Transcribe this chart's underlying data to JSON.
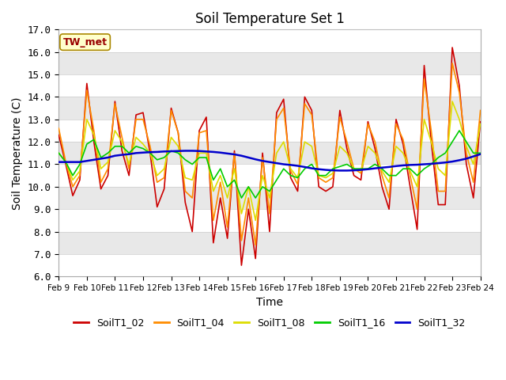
{
  "title": "Soil Temperature Set 1",
  "xlabel": "Time",
  "ylabel": "Soil Temperature (C)",
  "ylim": [
    6.0,
    17.0
  ],
  "yticks": [
    6.0,
    7.0,
    8.0,
    9.0,
    10.0,
    11.0,
    12.0,
    13.0,
    14.0,
    15.0,
    16.0,
    17.0
  ],
  "xtick_labels": [
    "Feb 9",
    "Feb 10",
    "Feb 11",
    "Feb 12",
    "Feb 13",
    "Feb 14",
    "Feb 15",
    "Feb 16",
    "Feb 17",
    "Feb 18",
    "Feb 19",
    "Feb 20",
    "Feb 21",
    "Feb 22",
    "Feb 23",
    "Feb 24"
  ],
  "annotation": "TW_met",
  "series": {
    "SoilT1_02": {
      "color": "#cc0000",
      "linewidth": 1.2,
      "values": [
        12.3,
        11.0,
        9.6,
        10.3,
        14.6,
        12.0,
        9.9,
        10.5,
        13.8,
        11.6,
        10.5,
        13.2,
        13.3,
        11.5,
        9.1,
        9.9,
        13.5,
        12.4,
        9.3,
        8.0,
        12.5,
        13.1,
        7.5,
        9.5,
        7.7,
        11.6,
        6.5,
        9.0,
        6.8,
        11.5,
        8.0,
        13.3,
        13.9,
        10.4,
        9.8,
        14.0,
        13.4,
        10.0,
        9.8,
        10.0,
        13.4,
        11.7,
        10.5,
        10.3,
        12.9,
        11.7,
        10.0,
        9.0,
        13.0,
        11.9,
        10.0,
        8.1,
        15.4,
        12.0,
        9.2,
        9.2,
        16.2,
        14.5,
        11.0,
        9.5,
        12.9
      ]
    },
    "SoilT1_04": {
      "color": "#ff8c00",
      "linewidth": 1.2,
      "values": [
        12.6,
        11.1,
        10.0,
        10.5,
        14.3,
        12.5,
        10.2,
        10.8,
        13.7,
        12.2,
        10.8,
        13.0,
        13.0,
        11.8,
        10.2,
        10.4,
        13.4,
        12.4,
        9.8,
        9.5,
        12.4,
        12.5,
        8.5,
        10.2,
        8.2,
        11.5,
        7.6,
        9.5,
        7.4,
        11.3,
        8.8,
        13.0,
        13.5,
        10.7,
        10.1,
        13.7,
        13.2,
        10.4,
        10.2,
        10.4,
        13.1,
        12.0,
        10.8,
        10.6,
        12.8,
        12.0,
        10.5,
        9.5,
        12.8,
        12.1,
        10.5,
        9.0,
        14.8,
        12.5,
        9.8,
        9.8,
        15.5,
        14.2,
        11.5,
        10.2,
        13.4
      ]
    },
    "SoilT1_08": {
      "color": "#dddd00",
      "linewidth": 1.2,
      "values": [
        11.5,
        11.1,
        10.3,
        10.7,
        13.0,
        12.3,
        10.8,
        11.1,
        12.5,
        12.0,
        11.0,
        12.2,
        11.9,
        11.5,
        10.5,
        10.8,
        12.2,
        11.8,
        10.4,
        10.3,
        11.5,
        11.5,
        9.8,
        10.5,
        9.5,
        10.8,
        8.8,
        10.0,
        8.5,
        10.5,
        9.5,
        11.5,
        12.0,
        10.8,
        10.4,
        12.0,
        11.8,
        10.5,
        10.4,
        10.6,
        11.8,
        11.5,
        10.8,
        10.7,
        11.8,
        11.5,
        10.7,
        10.2,
        11.8,
        11.5,
        10.7,
        10.0,
        13.0,
        12.0,
        10.8,
        10.5,
        13.8,
        13.0,
        11.8,
        11.0,
        12.8
      ]
    },
    "SoilT1_16": {
      "color": "#00cc00",
      "linewidth": 1.2,
      "values": [
        11.5,
        11.1,
        10.5,
        11.0,
        11.9,
        12.1,
        11.3,
        11.5,
        11.8,
        11.8,
        11.5,
        11.8,
        11.7,
        11.5,
        11.2,
        11.3,
        11.6,
        11.5,
        11.2,
        11.0,
        11.3,
        11.3,
        10.3,
        10.8,
        10.0,
        10.3,
        9.5,
        10.0,
        9.5,
        10.0,
        9.8,
        10.3,
        10.8,
        10.5,
        10.4,
        10.8,
        11.0,
        10.5,
        10.5,
        10.8,
        10.9,
        11.0,
        10.8,
        10.8,
        10.8,
        11.0,
        10.8,
        10.5,
        10.5,
        10.8,
        10.8,
        10.5,
        10.8,
        11.0,
        11.3,
        11.5,
        12.0,
        12.5,
        12.0,
        11.5,
        11.5
      ]
    },
    "SoilT1_32": {
      "color": "#0000cc",
      "linewidth": 1.8,
      "values": [
        11.1,
        11.1,
        11.1,
        11.1,
        11.15,
        11.2,
        11.25,
        11.3,
        11.38,
        11.42,
        11.45,
        11.5,
        11.52,
        11.54,
        11.55,
        11.57,
        11.58,
        11.59,
        11.6,
        11.6,
        11.59,
        11.57,
        11.55,
        11.52,
        11.48,
        11.44,
        11.38,
        11.3,
        11.22,
        11.15,
        11.1,
        11.05,
        11.0,
        10.97,
        10.93,
        10.88,
        10.82,
        10.78,
        10.75,
        10.73,
        10.72,
        10.72,
        10.73,
        10.75,
        10.78,
        10.82,
        10.85,
        10.88,
        10.92,
        10.95,
        10.97,
        10.98,
        11.0,
        11.02,
        11.05,
        11.08,
        11.12,
        11.18,
        11.25,
        11.35,
        11.45
      ]
    }
  },
  "legend_items": [
    "SoilT1_02",
    "SoilT1_04",
    "SoilT1_08",
    "SoilT1_16",
    "SoilT1_32"
  ],
  "legend_colors": [
    "#cc0000",
    "#ff8c00",
    "#dddd00",
    "#00cc00",
    "#0000cc"
  ],
  "stripe_colors": [
    "#ffffff",
    "#e8e8e8"
  ]
}
